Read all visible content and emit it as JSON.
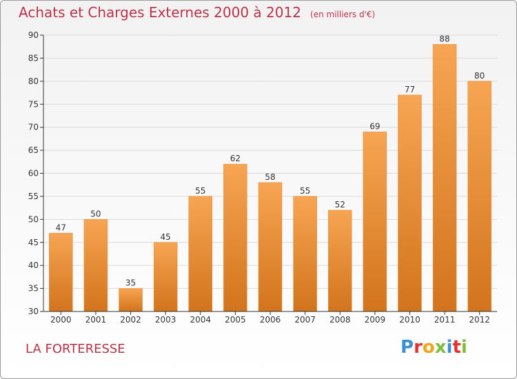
{
  "header": {
    "title": "Achats et Charges Externes 2000 à 2012",
    "unit": "(en milliers d'€)"
  },
  "footer": {
    "commune": "LA FORTERESSE",
    "logo": "Proxiti"
  },
  "colors": {
    "title": "#b8324a",
    "bar_top": "#f7a553",
    "bar_bottom": "#d2741c",
    "grid": "#d9d9d9",
    "axis": "#333333"
  },
  "chart_data": {
    "type": "bar",
    "title": "Achats et Charges Externes 2000 à 2012",
    "subtitle": "(en milliers d'€)",
    "xlabel": "",
    "ylabel": "",
    "categories": [
      "2000",
      "2001",
      "2002",
      "2003",
      "2004",
      "2005",
      "2006",
      "2007",
      "2008",
      "2009",
      "2010",
      "2011",
      "2012"
    ],
    "values": [
      47,
      50,
      35,
      45,
      55,
      62,
      58,
      55,
      52,
      69,
      77,
      88,
      80
    ],
    "ylim": [
      30,
      90
    ],
    "yticks": [
      30,
      35,
      40,
      45,
      50,
      55,
      60,
      65,
      70,
      75,
      80,
      85,
      90
    ],
    "grid": true,
    "data_labels": true
  }
}
